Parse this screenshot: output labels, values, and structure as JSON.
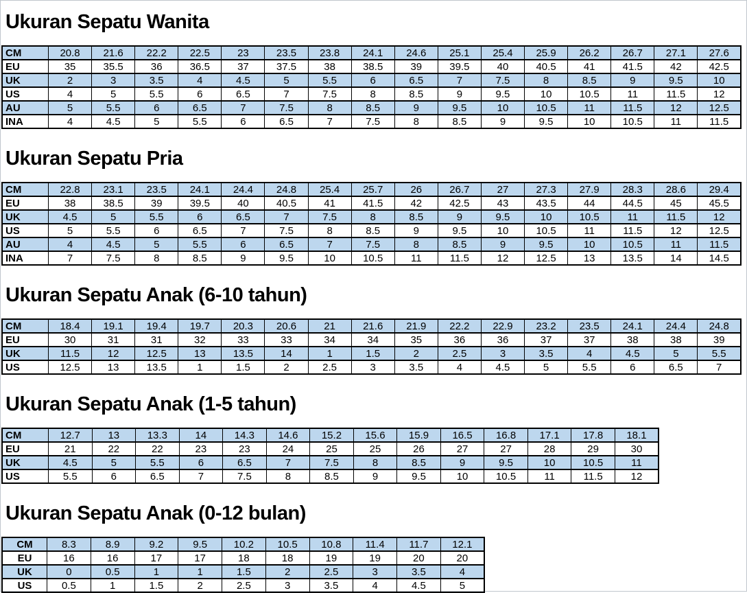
{
  "page": {
    "background_color": "#ffffff",
    "row_highlight_color": "#bdd7ee",
    "table_border_color": "#000000",
    "text_color": "#000000"
  },
  "sections": [
    {
      "title": "Ukuran Sepatu Wanita",
      "rows": [
        {
          "label": "CM",
          "values": [
            "20.8",
            "21.6",
            "22.2",
            "22.5",
            "23",
            "23.5",
            "23.8",
            "24.1",
            "24.6",
            "25.1",
            "25.4",
            "25.9",
            "26.2",
            "26.7",
            "27.1",
            "27.6"
          ]
        },
        {
          "label": "EU",
          "values": [
            "35",
            "35.5",
            "36",
            "36.5",
            "37",
            "37.5",
            "38",
            "38.5",
            "39",
            "39.5",
            "40",
            "40.5",
            "41",
            "41.5",
            "42",
            "42.5"
          ]
        },
        {
          "label": "UK",
          "values": [
            "2",
            "3",
            "3.5",
            "4",
            "4.5",
            "5",
            "5.5",
            "6",
            "6.5",
            "7",
            "7.5",
            "8",
            "8.5",
            "9",
            "9.5",
            "10"
          ]
        },
        {
          "label": "US",
          "values": [
            "4",
            "5",
            "5.5",
            "6",
            "6.5",
            "7",
            "7.5",
            "8",
            "8.5",
            "9",
            "9.5",
            "10",
            "10.5",
            "11",
            "11.5",
            "12"
          ]
        },
        {
          "label": "AU",
          "values": [
            "5",
            "5.5",
            "6",
            "6.5",
            "7",
            "7.5",
            "8",
            "8.5",
            "9",
            "9.5",
            "10",
            "10.5",
            "11",
            "11.5",
            "12",
            "12.5"
          ]
        },
        {
          "label": "INA",
          "values": [
            "4",
            "4.5",
            "5",
            "5.5",
            "6",
            "6.5",
            "7",
            "7.5",
            "8",
            "8.5",
            "9",
            "9.5",
            "10",
            "10.5",
            "11",
            "11.5"
          ]
        }
      ]
    },
    {
      "title": "Ukuran Sepatu Pria",
      "rows": [
        {
          "label": "CM",
          "values": [
            "22.8",
            "23.1",
            "23.5",
            "24.1",
            "24.4",
            "24.8",
            "25.4",
            "25.7",
            "26",
            "26.7",
            "27",
            "27.3",
            "27.9",
            "28.3",
            "28.6",
            "29.4"
          ]
        },
        {
          "label": "EU",
          "values": [
            "38",
            "38.5",
            "39",
            "39.5",
            "40",
            "40.5",
            "41",
            "41.5",
            "42",
            "42.5",
            "43",
            "43.5",
            "44",
            "44.5",
            "45",
            "45.5"
          ]
        },
        {
          "label": "UK",
          "values": [
            "4.5",
            "5",
            "5.5",
            "6",
            "6.5",
            "7",
            "7.5",
            "8",
            "8.5",
            "9",
            "9.5",
            "10",
            "10.5",
            "11",
            "11.5",
            "12"
          ]
        },
        {
          "label": "US",
          "values": [
            "5",
            "5.5",
            "6",
            "6.5",
            "7",
            "7.5",
            "8",
            "8.5",
            "9",
            "9.5",
            "10",
            "10.5",
            "11",
            "11.5",
            "12",
            "12.5"
          ]
        },
        {
          "label": "AU",
          "values": [
            "4",
            "4.5",
            "5",
            "5.5",
            "6",
            "6.5",
            "7",
            "7.5",
            "8",
            "8.5",
            "9",
            "9.5",
            "10",
            "10.5",
            "11",
            "11.5"
          ]
        },
        {
          "label": "INA",
          "values": [
            "7",
            "7.5",
            "8",
            "8.5",
            "9",
            "9.5",
            "10",
            "10.5",
            "11",
            "11.5",
            "12",
            "12.5",
            "13",
            "13.5",
            "14",
            "14.5"
          ]
        }
      ]
    },
    {
      "title": "Ukuran Sepatu Anak (6-10 tahun)",
      "rows": [
        {
          "label": "CM",
          "values": [
            "18.4",
            "19.1",
            "19.4",
            "19.7",
            "20.3",
            "20.6",
            "21",
            "21.6",
            "21.9",
            "22.2",
            "22.9",
            "23.2",
            "23.5",
            "24.1",
            "24.4",
            "24.8"
          ]
        },
        {
          "label": "EU",
          "values": [
            "30",
            "31",
            "31",
            "32",
            "33",
            "33",
            "34",
            "34",
            "35",
            "36",
            "36",
            "37",
            "37",
            "38",
            "38",
            "39"
          ]
        },
        {
          "label": "UK",
          "values": [
            "11.5",
            "12",
            "12.5",
            "13",
            "13.5",
            "14",
            "1",
            "1.5",
            "2",
            "2.5",
            "3",
            "3.5",
            "4",
            "4.5",
            "5",
            "5.5"
          ]
        },
        {
          "label": "US",
          "values": [
            "12.5",
            "13",
            "13.5",
            "1",
            "1.5",
            "2",
            "2.5",
            "3",
            "3.5",
            "4",
            "4.5",
            "5",
            "5.5",
            "6",
            "6.5",
            "7"
          ]
        }
      ]
    },
    {
      "title": "Ukuran Sepatu Anak (1-5 tahun)",
      "rows": [
        {
          "label": "CM",
          "values": [
            "12.7",
            "13",
            "13.3",
            "14",
            "14.3",
            "14.6",
            "15.2",
            "15.6",
            "15.9",
            "16.5",
            "16.8",
            "17.1",
            "17.8",
            "18.1"
          ]
        },
        {
          "label": "EU",
          "values": [
            "21",
            "22",
            "22",
            "23",
            "23",
            "24",
            "25",
            "25",
            "26",
            "27",
            "27",
            "28",
            "29",
            "30"
          ]
        },
        {
          "label": "UK",
          "values": [
            "4.5",
            "5",
            "5.5",
            "6",
            "6.5",
            "7",
            "7.5",
            "8",
            "8.5",
            "9",
            "9.5",
            "10",
            "10.5",
            "11"
          ]
        },
        {
          "label": "US",
          "values": [
            "5.5",
            "6",
            "6.5",
            "7",
            "7.5",
            "8",
            "8.5",
            "9",
            "9.5",
            "10",
            "10.5",
            "11",
            "11.5",
            "12"
          ]
        }
      ]
    },
    {
      "title": "Ukuran Sepatu Anak (0-12 bulan)",
      "rows": [
        {
          "label": "CM",
          "values": [
            "8.3",
            "8.9",
            "9.2",
            "9.5",
            "10.2",
            "10.5",
            "10.8",
            "11.4",
            "11.7",
            "12.1"
          ]
        },
        {
          "label": "EU",
          "values": [
            "16",
            "16",
            "17",
            "17",
            "18",
            "18",
            "19",
            "19",
            "20",
            "20"
          ]
        },
        {
          "label": "UK",
          "values": [
            "0",
            "0.5",
            "1",
            "1",
            "1.5",
            "2",
            "2.5",
            "3",
            "3.5",
            "4"
          ]
        },
        {
          "label": "US",
          "values": [
            "0.5",
            "1",
            "1.5",
            "2",
            "2.5",
            "3",
            "3.5",
            "4",
            "4.5",
            "5"
          ]
        }
      ]
    }
  ]
}
